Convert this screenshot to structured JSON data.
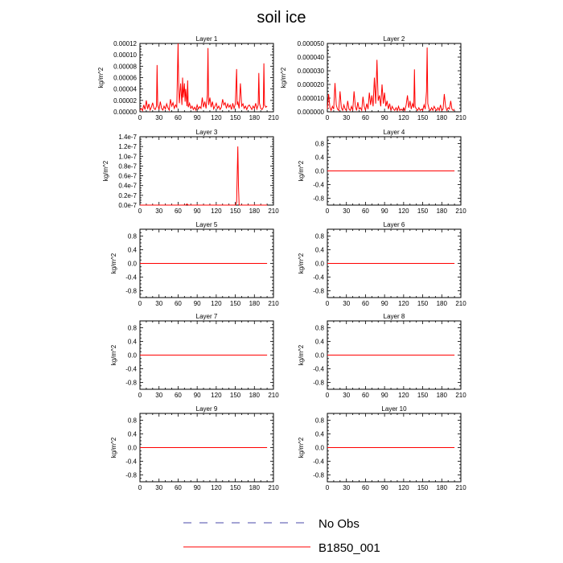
{
  "title": "soil ice",
  "colors": {
    "series": "#ff0000",
    "no_obs": "#4a4aa8",
    "axis": "#000000"
  },
  "legend": [
    {
      "label": "No Obs",
      "style": "dashed",
      "color": "#4a4aa8"
    },
    {
      "label": "B1850_001",
      "style": "solid",
      "color": "#ff0000"
    }
  ],
  "chart_data": [
    {
      "type": "line",
      "title": "Layer 1",
      "xlabel": "",
      "ylabel": "kg/m^2",
      "xlim": [
        0,
        210
      ],
      "ylim": [
        0,
        0.00012
      ],
      "xticks": [
        0,
        30,
        60,
        90,
        120,
        150,
        180,
        210
      ],
      "yticks": [
        0,
        2e-05,
        4e-05,
        6e-05,
        8e-05,
        0.0001,
        0.00012
      ],
      "ytick_labels": [
        "0.00000",
        "0.00002",
        "0.00004",
        "0.00006",
        "0.00008",
        "0.00010",
        "0.00012"
      ],
      "series": [
        {
          "name": "B1850_001",
          "x": [
            0,
            2,
            4,
            6,
            8,
            10,
            12,
            14,
            16,
            18,
            20,
            22,
            24,
            26,
            27,
            28,
            30,
            32,
            34,
            36,
            38,
            40,
            42,
            44,
            46,
            48,
            50,
            52,
            54,
            56,
            58,
            60,
            61,
            62,
            64,
            66,
            67,
            68,
            70,
            71,
            72,
            74,
            75,
            76,
            78,
            80,
            82,
            84,
            86,
            88,
            90,
            92,
            94,
            96,
            98,
            100,
            102,
            104,
            106,
            107,
            108,
            110,
            112,
            114,
            116,
            118,
            120,
            122,
            124,
            126,
            128,
            130,
            132,
            134,
            136,
            138,
            140,
            142,
            144,
            146,
            148,
            150,
            152,
            153,
            154,
            156,
            158,
            160,
            162,
            164,
            166,
            168,
            170,
            172,
            174,
            176,
            178,
            180,
            182,
            184,
            186,
            187,
            188,
            190,
            192,
            194,
            195,
            196,
            198,
            200
          ],
          "y": [
            3e-06,
            6e-06,
            2e-06,
            1.2e-05,
            4e-06,
            2e-05,
            5e-06,
            1.4e-05,
            3e-06,
            8e-06,
            1.6e-05,
            6e-06,
            4e-06,
            1e-05,
            8.2e-05,
            1.2e-05,
            4e-06,
            1.8e-05,
            6e-06,
            3e-06,
            1e-05,
            5e-06,
            1.4e-05,
            7e-06,
            3e-06,
            2.2e-05,
            1e-05,
            1.6e-05,
            6e-06,
            1.2e-05,
            8e-06,
            0.00012,
            4.5e-05,
            1.5e-05,
            5e-05,
            1.2e-05,
            6e-05,
            2.5e-05,
            5e-05,
            1.8e-05,
            4e-05,
            1e-05,
            5.5e-05,
            8e-06,
            1.5e-05,
            6e-06,
            1e-05,
            4e-06,
            8e-06,
            3e-06,
            1.2e-05,
            5e-06,
            9e-06,
            6e-06,
            2.5e-05,
            8e-06,
            1.8e-05,
            6e-06,
            3e-05,
            0.000112,
            1.2e-05,
            2.5e-05,
            8e-06,
            1.8e-05,
            5e-06,
            1e-05,
            1.5e-05,
            6e-06,
            1e-05,
            4e-06,
            8e-06,
            2.2e-05,
            1.2e-05,
            1.6e-05,
            6e-06,
            1.4e-05,
            8e-06,
            1.2e-05,
            4e-06,
            1.5e-05,
            6e-06,
            1.4e-05,
            7.5e-05,
            1.2e-05,
            1.8e-05,
            6e-06,
            5e-05,
            1e-05,
            1.4e-05,
            6e-06,
            1e-05,
            4e-06,
            1e-05,
            1.2e-05,
            8e-06,
            4e-06,
            1e-05,
            6e-06,
            1.5e-05,
            5e-06,
            1.2e-05,
            6.8e-05,
            1.5e-05,
            6e-06,
            4e-06,
            8e-06,
            8.5e-05,
            1.2e-05,
            8e-06,
            1e-05
          ]
        }
      ]
    },
    {
      "type": "line",
      "title": "Layer 2",
      "xlabel": "",
      "ylabel": "kg/m^2",
      "xlim": [
        0,
        210
      ],
      "ylim": [
        0,
        5e-05
      ],
      "xticks": [
        0,
        30,
        60,
        90,
        120,
        150,
        180,
        210
      ],
      "yticks": [
        0,
        1e-05,
        2e-05,
        3e-05,
        4e-05,
        5e-05
      ],
      "ytick_labels": [
        "0.000000",
        "0.000010",
        "0.000020",
        "0.000030",
        "0.000040",
        "0.000050"
      ],
      "series": [
        {
          "name": "B1850_001",
          "x": [
            0,
            2,
            4,
            6,
            8,
            10,
            12,
            14,
            16,
            18,
            20,
            22,
            24,
            26,
            28,
            30,
            32,
            34,
            36,
            38,
            40,
            42,
            44,
            46,
            48,
            50,
            52,
            54,
            56,
            58,
            60,
            62,
            64,
            66,
            68,
            70,
            72,
            74,
            76,
            78,
            80,
            82,
            84,
            86,
            88,
            90,
            92,
            94,
            96,
            98,
            100,
            102,
            104,
            106,
            108,
            110,
            112,
            114,
            116,
            118,
            120,
            122,
            124,
            126,
            128,
            130,
            132,
            134,
            136,
            137,
            138,
            140,
            142,
            144,
            146,
            148,
            150,
            152,
            154,
            156,
            157,
            158,
            160,
            162,
            164,
            166,
            168,
            170,
            172,
            174,
            176,
            178,
            180,
            182,
            184,
            186,
            188,
            190,
            192,
            194,
            196,
            198,
            200
          ],
          "y": [
            2e-06,
            1.3e-05,
            3e-06,
            1e-06,
            4e-06,
            2e-06,
            2.1e-05,
            5e-06,
            2e-06,
            1e-06,
            1.5e-05,
            3e-06,
            1e-06,
            5e-06,
            2e-06,
            1e-06,
            8e-06,
            2e-06,
            1e-06,
            4e-06,
            1e-06,
            1.5e-05,
            4e-06,
            1e-06,
            7e-06,
            2e-06,
            3e-06,
            1e-06,
            1.1e-05,
            4e-06,
            1e-06,
            6e-06,
            2e-06,
            1.4e-05,
            5e-06,
            1.2e-05,
            4e-06,
            2.5e-05,
            6e-06,
            3.8e-05,
            8e-06,
            1.2e-05,
            4e-06,
            2e-05,
            6e-06,
            1.4e-05,
            4e-06,
            8e-06,
            2e-06,
            6e-06,
            1e-06,
            4e-06,
            2e-06,
            1e-06,
            3e-06,
            1e-06,
            4e-06,
            1e-06,
            2e-06,
            1e-06,
            3e-06,
            1e-06,
            5e-06,
            1.2e-05,
            3e-06,
            8e-06,
            2e-06,
            6e-06,
            3e-06,
            3.1e-05,
            4e-06,
            2e-06,
            1e-06,
            3e-06,
            1e-06,
            2e-06,
            1e-06,
            5e-06,
            2e-06,
            1.5e-05,
            4.7e-05,
            6e-06,
            2e-06,
            1e-06,
            3e-06,
            1e-06,
            4e-06,
            2e-06,
            1e-06,
            3e-06,
            1e-06,
            5e-06,
            1e-06,
            2e-06,
            1.3e-05,
            4e-06,
            1e-06,
            3e-06,
            2e-06,
            8e-06,
            2e-06,
            1e-06,
            2e-06
          ]
        }
      ]
    },
    {
      "type": "line",
      "title": "Layer 3",
      "xlabel": "",
      "ylabel": "kg/m^2",
      "xlim": [
        0,
        210
      ],
      "ylim": [
        0,
        1.4e-07
      ],
      "xticks": [
        0,
        30,
        60,
        90,
        120,
        150,
        180,
        210
      ],
      "yticks": [
        0,
        2e-08,
        4e-08,
        6e-08,
        8e-08,
        1e-07,
        1.2e-07,
        1.4e-07
      ],
      "ytick_labels": [
        "0.0e-7",
        "0.2e-7",
        "0.4e-7",
        "0.6e-7",
        "0.8e-7",
        "1.0e-7",
        "1.2e-7",
        "1.4e-7"
      ],
      "series": [
        {
          "name": "B1850_001",
          "x": [
            0,
            20,
            70,
            72,
            74,
            76,
            100,
            150,
            152,
            153,
            154,
            155,
            156,
            158,
            160,
            200
          ],
          "y": [
            0,
            0,
            0,
            0,
            2.5e-09,
            0,
            0,
            0,
            5e-09,
            6e-08,
            1.2e-07,
            4e-08,
            0,
            0,
            0,
            0
          ]
        }
      ]
    },
    {
      "type": "line",
      "title": "Layer 4",
      "xlabel": "",
      "ylabel": "kg/m^2",
      "xlim": [
        0,
        210
      ],
      "ylim": [
        -1,
        1
      ],
      "xticks": [
        0,
        30,
        60,
        90,
        120,
        150,
        180,
        210
      ],
      "yticks": [
        -0.8,
        -0.4,
        0,
        0.4,
        0.8
      ],
      "ytick_labels": [
        "-0.8",
        "-0.4",
        "0.0",
        "0.4",
        "0.8"
      ],
      "series": [
        {
          "name": "B1850_001",
          "x": [
            0,
            200
          ],
          "y": [
            0,
            0
          ]
        }
      ]
    },
    {
      "type": "line",
      "title": "Layer 5",
      "xlabel": "",
      "ylabel": "kg/m^2",
      "xlim": [
        0,
        210
      ],
      "ylim": [
        -1,
        1
      ],
      "xticks": [
        0,
        30,
        60,
        90,
        120,
        150,
        180,
        210
      ],
      "yticks": [
        -0.8,
        -0.4,
        0,
        0.4,
        0.8
      ],
      "ytick_labels": [
        "-0.8",
        "-0.4",
        "0.0",
        "0.4",
        "0.8"
      ],
      "series": [
        {
          "name": "B1850_001",
          "x": [
            0,
            200
          ],
          "y": [
            0,
            0
          ]
        }
      ]
    },
    {
      "type": "line",
      "title": "Layer 6",
      "xlabel": "",
      "ylabel": "kg/m^2",
      "xlim": [
        0,
        210
      ],
      "ylim": [
        -1,
        1
      ],
      "xticks": [
        0,
        30,
        60,
        90,
        120,
        150,
        180,
        210
      ],
      "yticks": [
        -0.8,
        -0.4,
        0,
        0.4,
        0.8
      ],
      "ytick_labels": [
        "-0.8",
        "-0.4",
        "0.0",
        "0.4",
        "0.8"
      ],
      "series": [
        {
          "name": "B1850_001",
          "x": [
            0,
            200
          ],
          "y": [
            0,
            0
          ]
        }
      ]
    },
    {
      "type": "line",
      "title": "Layer 7",
      "xlabel": "",
      "ylabel": "kg/m^2",
      "xlim": [
        0,
        210
      ],
      "ylim": [
        -1,
        1
      ],
      "xticks": [
        0,
        30,
        60,
        90,
        120,
        150,
        180,
        210
      ],
      "yticks": [
        -0.8,
        -0.4,
        0,
        0.4,
        0.8
      ],
      "ytick_labels": [
        "-0.8",
        "-0.4",
        "0.0",
        "0.4",
        "0.8"
      ],
      "series": [
        {
          "name": "B1850_001",
          "x": [
            0,
            200
          ],
          "y": [
            0,
            0
          ]
        }
      ]
    },
    {
      "type": "line",
      "title": "Layer 8",
      "xlabel": "",
      "ylabel": "kg/m^2",
      "xlim": [
        0,
        210
      ],
      "ylim": [
        -1,
        1
      ],
      "xticks": [
        0,
        30,
        60,
        90,
        120,
        150,
        180,
        210
      ],
      "yticks": [
        -0.8,
        -0.4,
        0,
        0.4,
        0.8
      ],
      "ytick_labels": [
        "-0.8",
        "-0.4",
        "0.0",
        "0.4",
        "0.8"
      ],
      "series": [
        {
          "name": "B1850_001",
          "x": [
            0,
            200
          ],
          "y": [
            0,
            0
          ]
        }
      ]
    },
    {
      "type": "line",
      "title": "Layer 9",
      "xlabel": "",
      "ylabel": "kg/m^2",
      "xlim": [
        0,
        210
      ],
      "ylim": [
        -1,
        1
      ],
      "xticks": [
        0,
        30,
        60,
        90,
        120,
        150,
        180,
        210
      ],
      "yticks": [
        -0.8,
        -0.4,
        0,
        0.4,
        0.8
      ],
      "ytick_labels": [
        "-0.8",
        "-0.4",
        "0.0",
        "0.4",
        "0.8"
      ],
      "series": [
        {
          "name": "B1850_001",
          "x": [
            0,
            200
          ],
          "y": [
            0,
            0
          ]
        }
      ]
    },
    {
      "type": "line",
      "title": "Layer 10",
      "xlabel": "",
      "ylabel": "kg/m^2",
      "xlim": [
        0,
        210
      ],
      "ylim": [
        -1,
        1
      ],
      "xticks": [
        0,
        30,
        60,
        90,
        120,
        150,
        180,
        210
      ],
      "yticks": [
        -0.8,
        -0.4,
        0,
        0.4,
        0.8
      ],
      "ytick_labels": [
        "-0.8",
        "-0.4",
        "0.0",
        "0.4",
        "0.8"
      ],
      "series": [
        {
          "name": "B1850_001",
          "x": [
            0,
            200
          ],
          "y": [
            0,
            0
          ]
        }
      ]
    }
  ]
}
